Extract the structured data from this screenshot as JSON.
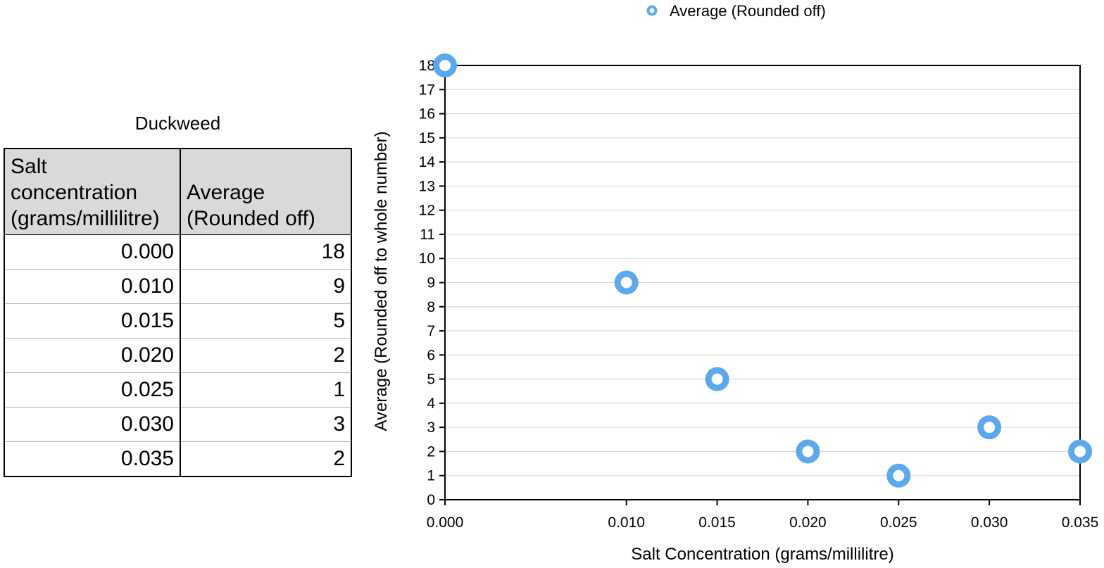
{
  "table": {
    "title": "Duckweed",
    "headers": [
      "Salt concentration (grams/millilitre)",
      "Average (Rounded off)"
    ],
    "rows": [
      [
        "0.000",
        "18"
      ],
      [
        "0.010",
        "9"
      ],
      [
        "0.015",
        "5"
      ],
      [
        "0.020",
        "2"
      ],
      [
        "0.025",
        "1"
      ],
      [
        "0.030",
        "3"
      ],
      [
        "0.035",
        "2"
      ]
    ]
  },
  "chart_data": {
    "type": "scatter",
    "title": "",
    "xlabel": "Salt Concentration (grams/millilitre)",
    "ylabel": "Average (Rounded off to whole number)",
    "xlim": [
      0,
      0.035
    ],
    "ylim": [
      0,
      18
    ],
    "x_ticks": [
      "0.000",
      "0.010",
      "0.015",
      "0.020",
      "0.025",
      "0.030",
      "0.035"
    ],
    "y_ticks": [
      "0",
      "1",
      "2",
      "3",
      "4",
      "5",
      "6",
      "7",
      "8",
      "9",
      "10",
      "11",
      "12",
      "13",
      "14",
      "15",
      "16",
      "17",
      "18"
    ],
    "grid": true,
    "legend_position": "top-center",
    "series": [
      {
        "name": "Average (Rounded off)",
        "color": "#5aa9ef",
        "x": [
          0.0,
          0.01,
          0.015,
          0.02,
          0.025,
          0.03,
          0.035
        ],
        "y": [
          18,
          9,
          5,
          2,
          1,
          3,
          2
        ]
      }
    ]
  }
}
